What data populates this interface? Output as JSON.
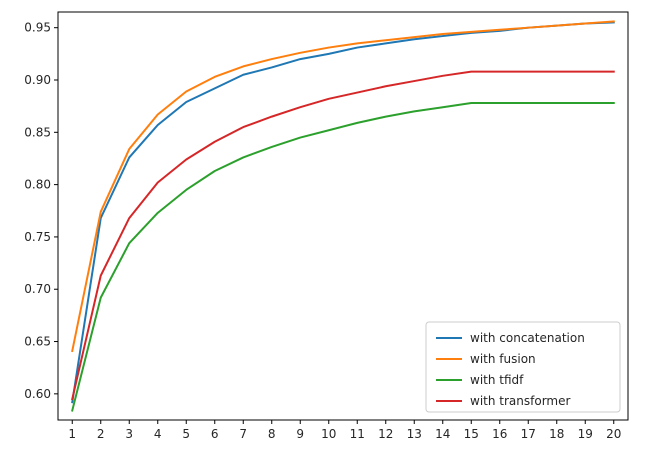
{
  "chart_data": {
    "type": "line",
    "x": [
      1,
      2,
      3,
      4,
      5,
      6,
      7,
      8,
      9,
      10,
      11,
      12,
      13,
      14,
      15,
      16,
      17,
      18,
      19,
      20
    ],
    "xlim": [
      0.5,
      20.5
    ],
    "ylim": [
      0.575,
      0.965
    ],
    "yticks": [
      0.6,
      0.65,
      0.7,
      0.75,
      0.8,
      0.85,
      0.9,
      0.95
    ],
    "ytick_labels": [
      "0.60",
      "0.65",
      "0.70",
      "0.75",
      "0.80",
      "0.85",
      "0.90",
      "0.95"
    ],
    "xtick_labels": [
      "1",
      "2",
      "3",
      "4",
      "5",
      "6",
      "7",
      "8",
      "9",
      "10",
      "11",
      "12",
      "13",
      "14",
      "15",
      "16",
      "17",
      "18",
      "19",
      "20"
    ],
    "grid": false,
    "legend_position": "lower-right",
    "series": [
      {
        "name": "with concatenation",
        "color": "#1f77b4",
        "values": [
          0.592,
          0.768,
          0.826,
          0.857,
          0.879,
          0.892,
          0.905,
          0.912,
          0.92,
          0.925,
          0.931,
          0.935,
          0.939,
          0.942,
          0.945,
          0.947,
          0.95,
          0.952,
          0.954,
          0.955
        ]
      },
      {
        "name": "with fusion",
        "color": "#ff7f0e",
        "values": [
          0.641,
          0.774,
          0.834,
          0.867,
          0.889,
          0.903,
          0.913,
          0.92,
          0.926,
          0.931,
          0.935,
          0.938,
          0.941,
          0.944,
          0.946,
          0.948,
          0.95,
          0.952,
          0.954,
          0.956
        ]
      },
      {
        "name": "with tfidf",
        "color": "#2ca02c",
        "values": [
          0.584,
          0.692,
          0.744,
          0.773,
          0.795,
          0.813,
          0.826,
          0.836,
          0.845,
          0.852,
          0.859,
          0.865,
          0.87,
          0.874,
          0.878,
          0.878,
          0.878,
          0.878,
          0.878,
          0.878
        ]
      },
      {
        "name": "with transformer",
        "color": "#d62728",
        "values": [
          0.595,
          0.713,
          0.768,
          0.802,
          0.824,
          0.841,
          0.855,
          0.865,
          0.874,
          0.882,
          0.888,
          0.894,
          0.899,
          0.904,
          0.908,
          0.908,
          0.908,
          0.908,
          0.908,
          0.908
        ]
      }
    ]
  }
}
